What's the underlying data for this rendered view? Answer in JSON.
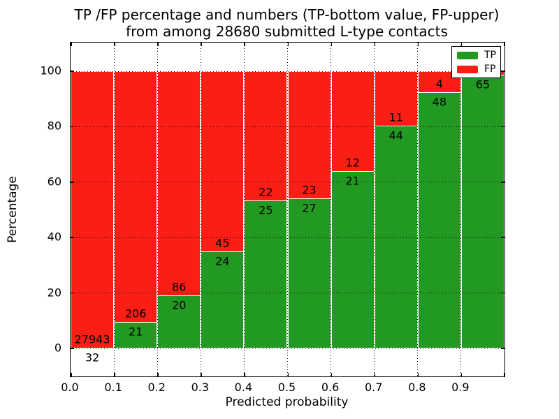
{
  "chart_data": {
    "type": "bar",
    "stacked": true,
    "title_line1": "TP /FP percentage and numbers (TP-bottom value, FP-upper)",
    "title_line2": "from among 28680 submitted L-type contacts",
    "xlabel": "Predicted probability",
    "ylabel": "Percentage",
    "x_tick_labels": [
      "0.0",
      "0.1",
      "0.2",
      "0.3",
      "0.4",
      "0.5",
      "0.6",
      "0.7",
      "0.8",
      "0.9"
    ],
    "y_tick_values": [
      0,
      20,
      40,
      60,
      80,
      100
    ],
    "x_range": [
      0.0,
      1.0
    ],
    "y_range_shown": [
      0,
      100
    ],
    "grid": "dotted",
    "legend_position": "upper-right",
    "legend": [
      {
        "label": "TP",
        "color": "#229a22"
      },
      {
        "label": "FP",
        "color": "#fb1e14"
      }
    ],
    "tp_color": "#229a22",
    "fp_color": "#fb1e14",
    "bins": [
      {
        "x_start": 0.0,
        "x_end": 0.1,
        "tp_label": "32",
        "fp_label": "27943",
        "tp_pct": 0.11,
        "fp_pct": 99.89
      },
      {
        "x_start": 0.1,
        "x_end": 0.2,
        "tp_label": "21",
        "fp_label": "206",
        "tp_pct": 9.25,
        "fp_pct": 90.75
      },
      {
        "x_start": 0.2,
        "x_end": 0.3,
        "tp_label": "20",
        "fp_label": "86",
        "tp_pct": 18.87,
        "fp_pct": 81.13
      },
      {
        "x_start": 0.3,
        "x_end": 0.4,
        "tp_label": "24",
        "fp_label": "45",
        "tp_pct": 34.78,
        "fp_pct": 65.22
      },
      {
        "x_start": 0.4,
        "x_end": 0.5,
        "tp_label": "25",
        "fp_label": "22",
        "tp_pct": 53.19,
        "fp_pct": 46.81
      },
      {
        "x_start": 0.5,
        "x_end": 0.6,
        "tp_label": "27",
        "fp_label": "23",
        "tp_pct": 54.0,
        "fp_pct": 46.0
      },
      {
        "x_start": 0.6,
        "x_end": 0.7,
        "tp_label": "21",
        "fp_label": "12",
        "tp_pct": 63.64,
        "fp_pct": 36.36
      },
      {
        "x_start": 0.7,
        "x_end": 0.8,
        "tp_label": "44",
        "fp_label": "11",
        "tp_pct": 80.0,
        "fp_pct": 20.0
      },
      {
        "x_start": 0.8,
        "x_end": 0.9,
        "tp_label": "48",
        "fp_label": "4",
        "tp_pct": 92.31,
        "fp_pct": 7.69
      },
      {
        "x_start": 0.9,
        "x_end": 1.0,
        "tp_label": "65",
        "fp_label": "",
        "tp_pct": 98.48,
        "fp_pct": 1.52
      }
    ]
  }
}
